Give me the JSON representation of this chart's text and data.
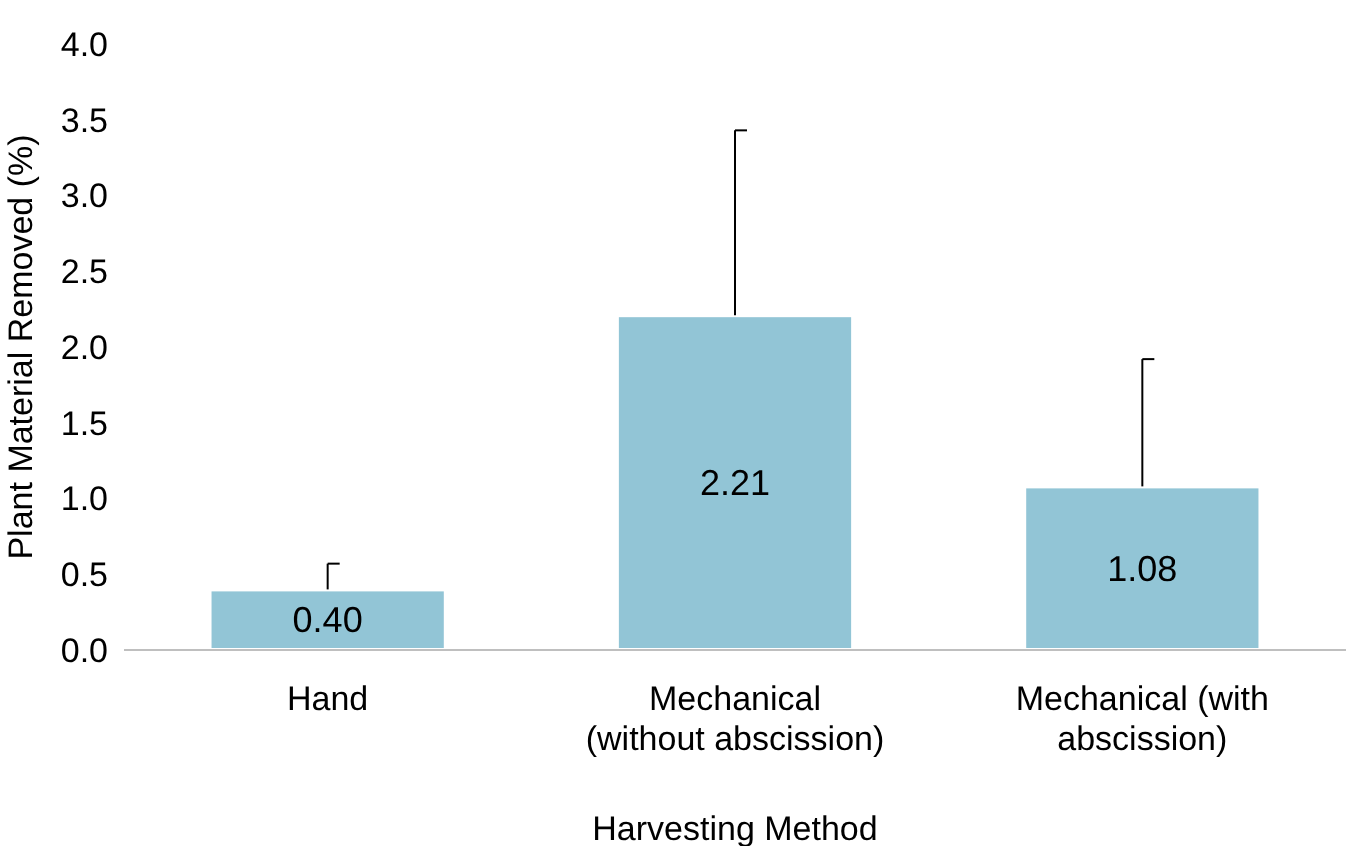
{
  "chart_data": {
    "type": "bar",
    "xlabel": "Harvesting Method",
    "ylabel": "Plant Material Removed  (%)",
    "categories": [
      "Hand",
      "Mechanical (without abscission)",
      "Mechanical (with abscission)"
    ],
    "values": [
      0.4,
      2.21,
      1.08
    ],
    "color": "#92c5d6",
    "value_labels": [
      "0.40",
      "2.21",
      "1.08"
    ],
    "errors": [
      [
        0.4,
        0.57
      ],
      [
        2.21,
        3.43
      ],
      [
        1.08,
        1.92
      ]
    ],
    "ylim": [
      0,
      4
    ],
    "yticks": [
      {
        "value": 0,
        "label": "0.0"
      },
      {
        "value": 0.5,
        "label": "0.5"
      },
      {
        "value": 1,
        "label": "1.0"
      },
      {
        "value": 1.5,
        "label": "1.5"
      },
      {
        "value": 2,
        "label": "2.0"
      },
      {
        "value": 2.5,
        "label": "2.5"
      },
      {
        "value": 3,
        "label": "3.0"
      },
      {
        "value": 3.5,
        "label": "3.5"
      },
      {
        "value": 4,
        "label": "4.0"
      }
    ],
    "grid": false
  }
}
